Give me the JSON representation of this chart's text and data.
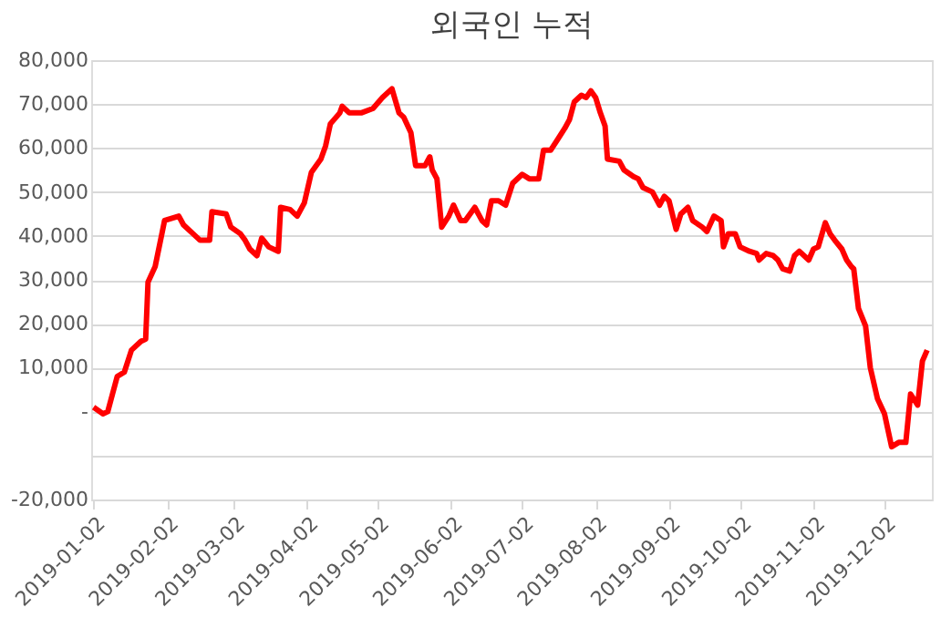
{
  "chart_data": {
    "type": "line",
    "title": "외국인 누적",
    "x": [
      "2019-01-02",
      "2019-01-06",
      "2019-01-08",
      "2019-01-10",
      "2019-01-12",
      "2019-01-15",
      "2019-01-18",
      "2019-01-22",
      "2019-01-24",
      "2019-01-25",
      "2019-01-28",
      "2019-02-01",
      "2019-02-07",
      "2019-02-09",
      "2019-02-13",
      "2019-02-16",
      "2019-02-20",
      "2019-02-21",
      "2019-02-27",
      "2019-03-01",
      "2019-03-05",
      "2019-03-07",
      "2019-03-09",
      "2019-03-12",
      "2019-03-14",
      "2019-03-17",
      "2019-03-21",
      "2019-03-22",
      "2019-03-26",
      "2019-03-29",
      "2019-04-01",
      "2019-04-04",
      "2019-04-08",
      "2019-04-10",
      "2019-04-12",
      "2019-04-16",
      "2019-04-17",
      "2019-04-20",
      "2019-04-25",
      "2019-04-30",
      "2019-05-04",
      "2019-05-08",
      "2019-05-11",
      "2019-05-13",
      "2019-05-16",
      "2019-05-18",
      "2019-05-22",
      "2019-05-24",
      "2019-05-25",
      "2019-05-27",
      "2019-05-29",
      "2019-06-01",
      "2019-06-03",
      "2019-06-06",
      "2019-06-08",
      "2019-06-12",
      "2019-06-15",
      "2019-06-17",
      "2019-06-19",
      "2019-06-22",
      "2019-06-25",
      "2019-06-28",
      "2019-07-02",
      "2019-07-05",
      "2019-07-09",
      "2019-07-11",
      "2019-07-14",
      "2019-07-17",
      "2019-07-20",
      "2019-07-22",
      "2019-07-24",
      "2019-07-27",
      "2019-07-29",
      "2019-07-31",
      "2019-08-02",
      "2019-08-04",
      "2019-08-06",
      "2019-08-07",
      "2019-08-12",
      "2019-08-14",
      "2019-08-18",
      "2019-08-20",
      "2019-08-22",
      "2019-08-26",
      "2019-08-29",
      "2019-08-31",
      "2019-09-02",
      "2019-09-05",
      "2019-09-07",
      "2019-09-10",
      "2019-09-12",
      "2019-09-16",
      "2019-09-18",
      "2019-09-21",
      "2019-09-24",
      "2019-09-25",
      "2019-09-27",
      "2019-09-30",
      "2019-10-02",
      "2019-10-06",
      "2019-10-09",
      "2019-10-10",
      "2019-10-13",
      "2019-10-16",
      "2019-10-18",
      "2019-10-20",
      "2019-10-23",
      "2019-10-25",
      "2019-10-27",
      "2019-10-31",
      "2019-11-02",
      "2019-11-04",
      "2019-11-07",
      "2019-11-09",
      "2019-11-11",
      "2019-11-14",
      "2019-11-16",
      "2019-11-18",
      "2019-11-19",
      "2019-11-21",
      "2019-11-24",
      "2019-11-26",
      "2019-11-29",
      "2019-12-02",
      "2019-12-05",
      "2019-12-08",
      "2019-12-11",
      "2019-12-13",
      "2019-12-16",
      "2019-12-18",
      "2019-12-20"
    ],
    "series": [
      {
        "color": "#ff0000",
        "values": [
          1000,
          -500,
          0,
          4000,
          8000,
          9000,
          14000,
          16000,
          16500,
          29500,
          33000,
          43500,
          44500,
          42500,
          40500,
          39000,
          39000,
          45500,
          45000,
          42000,
          40500,
          39000,
          37000,
          35500,
          39500,
          37500,
          36500,
          46500,
          46000,
          44500,
          47500,
          54500,
          57500,
          60500,
          65500,
          68000,
          69500,
          68000,
          68000,
          69000,
          71500,
          73500,
          68000,
          67000,
          63500,
          56000,
          56000,
          58000,
          55000,
          53000,
          42000,
          44500,
          47000,
          43500,
          43500,
          46500,
          43500,
          42500,
          48000,
          48000,
          47000,
          52000,
          54000,
          53000,
          53000,
          59500,
          59500,
          62000,
          64500,
          66500,
          70500,
          72000,
          71500,
          73000,
          71500,
          68000,
          65000,
          57500,
          57000,
          55000,
          53500,
          53000,
          51000,
          50000,
          47000,
          49000,
          48000,
          41500,
          45000,
          46500,
          43500,
          42000,
          41000,
          44500,
          43500,
          37500,
          40500,
          40500,
          37500,
          36500,
          36000,
          34500,
          36000,
          35500,
          34500,
          32500,
          32000,
          35500,
          36500,
          34500,
          37000,
          37500,
          43000,
          40500,
          39000,
          37000,
          34500,
          33000,
          32500,
          23500,
          19500,
          10000,
          3000,
          -500,
          -8000,
          -7000,
          -7000,
          4000,
          1500,
          11500,
          14000
        ]
      }
    ],
    "xlim": [
      "2019-01-01",
      "2019-12-22"
    ],
    "xticks": [
      "2019-01-02",
      "2019-02-02",
      "2019-03-02",
      "2019-04-02",
      "2019-05-02",
      "2019-06-02",
      "2019-07-02",
      "2019-08-02",
      "2019-09-02",
      "2019-10-02",
      "2019-11-02",
      "2019-12-02"
    ],
    "ylim": [
      -20000,
      80000
    ],
    "yticks": [
      {
        "value": -20000,
        "label": "-20,000"
      },
      {
        "value": -10000,
        "label": null
      },
      {
        "value": 0,
        "label": "-"
      },
      {
        "value": 10000,
        "label": "10,000"
      },
      {
        "value": 20000,
        "label": "20,000"
      },
      {
        "value": 30000,
        "label": "30,000"
      },
      {
        "value": 40000,
        "label": "40,000"
      },
      {
        "value": 50000,
        "label": "50,000"
      },
      {
        "value": 60000,
        "label": "60,000"
      },
      {
        "value": 70000,
        "label": "70,000"
      },
      {
        "value": 80000,
        "label": "80,000"
      }
    ],
    "grid": "y",
    "line_style": "solid",
    "marker": "none"
  }
}
